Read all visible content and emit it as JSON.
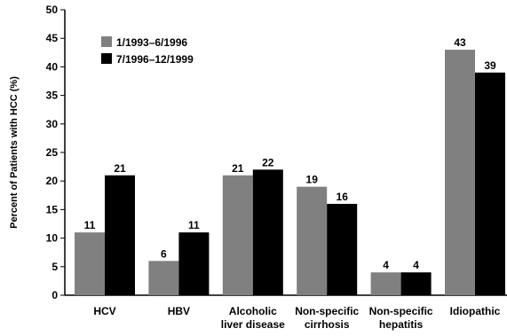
{
  "chart_data": {
    "type": "bar",
    "ylabel": "Percent of Patients with HCC (%)",
    "ylim": [
      0,
      50
    ],
    "yticks": [
      0,
      5,
      10,
      15,
      20,
      25,
      30,
      35,
      40,
      45,
      50
    ],
    "grid": false,
    "legend_position": "top-left",
    "categories": [
      [
        "HCV"
      ],
      [
        "HBV"
      ],
      [
        "Alcoholic",
        "liver disease"
      ],
      [
        "Non-specific",
        "cirrhosis"
      ],
      [
        "Non-specific",
        "hepatitis"
      ],
      [
        "Idiopathic"
      ]
    ],
    "series": [
      {
        "name": "1/1993–6/1996",
        "color": "#808080",
        "values": [
          11,
          6,
          21,
          19,
          4,
          43
        ]
      },
      {
        "name": "7/1996–12/1999",
        "color": "#000000",
        "values": [
          21,
          11,
          22,
          16,
          4,
          39
        ]
      }
    ]
  }
}
